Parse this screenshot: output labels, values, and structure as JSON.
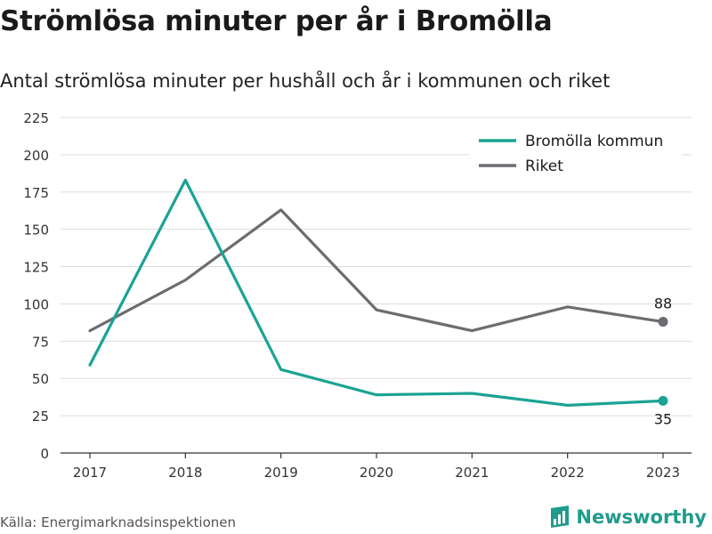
{
  "chart_data": {
    "type": "line",
    "title": "Strömlösa minuter per år i Bromölla",
    "subtitle": "Antal strömlösa minuter per hushåll och år i kommunen och riket",
    "categories": [
      "2017",
      "2018",
      "2019",
      "2020",
      "2021",
      "2022",
      "2023"
    ],
    "y_ticks": [
      "0",
      "25",
      "50",
      "75",
      "100",
      "125",
      "150",
      "175",
      "200",
      "225"
    ],
    "ylim": [
      0,
      225
    ],
    "grid": true,
    "legend_position": "top-right",
    "series": [
      {
        "name": "Bromölla kommun",
        "color": "#1aa394",
        "values": [
          59,
          183,
          56,
          39,
          40,
          32,
          35
        ],
        "end_label": "35"
      },
      {
        "name": "Riket",
        "color": "#6d6c71",
        "values": [
          82,
          116,
          163,
          96,
          82,
          98,
          88
        ],
        "end_label": "88"
      }
    ]
  },
  "source_text": "Källa: Energimarknadsinspektionen",
  "brand": {
    "name": "Newsworthy",
    "icon": "bar-chart-icon",
    "color": "#1f9c8c"
  }
}
